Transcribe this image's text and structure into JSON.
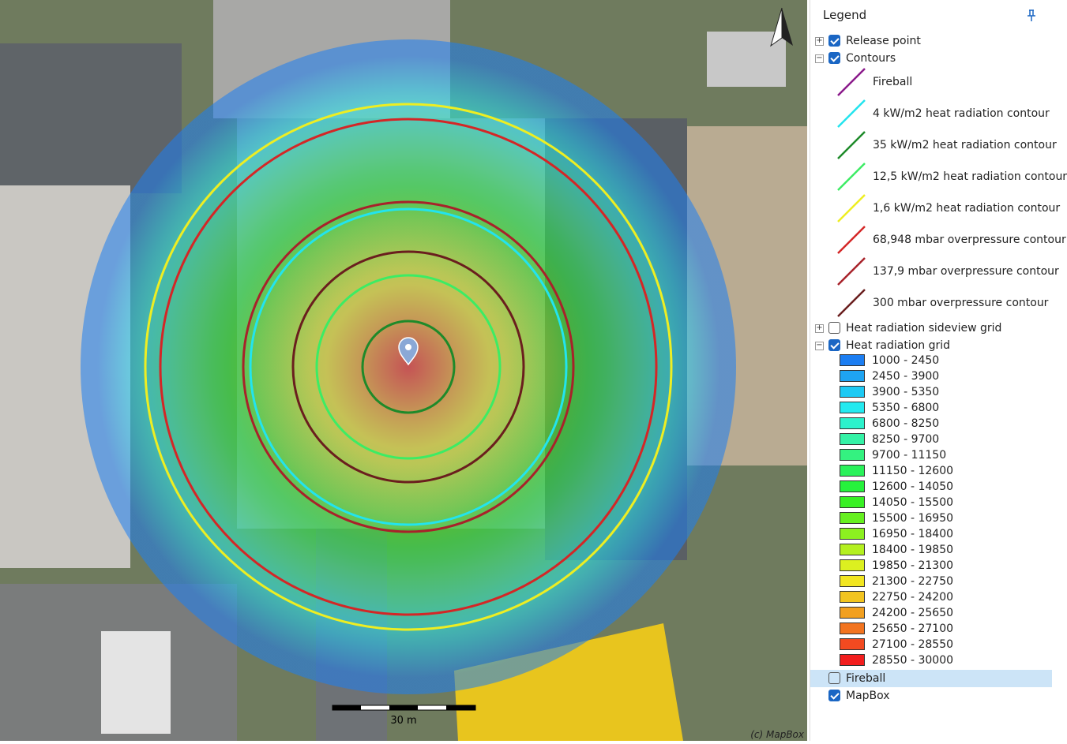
{
  "map": {
    "scale_label": "30 m",
    "attribution": "(c) MapBox"
  },
  "legend": {
    "title": "Legend",
    "items": [
      {
        "label": "Release point",
        "checked": true,
        "expanded": false
      },
      {
        "label": "Contours",
        "checked": true,
        "expanded": true,
        "children": [
          {
            "label": "Fireball",
            "color": "#8a1a8a"
          },
          {
            "label": "4 kW/m2 heat radiation contour",
            "color": "#22e4ee"
          },
          {
            "label": "35 kW/m2 heat radiation contour",
            "color": "#1e8a2a"
          },
          {
            "label": "12,5 kW/m2 heat radiation contour",
            "color": "#3cec64"
          },
          {
            "label": "1,6 kW/m2 heat radiation contour",
            "color": "#eeee22"
          },
          {
            "label": "68,948 mbar overpressure contour",
            "color": "#d42626"
          },
          {
            "label": "137,9 mbar overpressure contour",
            "color": "#a8222a"
          },
          {
            "label": "300 mbar overpressure contour",
            "color": "#6a1e1e"
          }
        ]
      },
      {
        "label": "Heat radiation sideview grid",
        "checked": false,
        "expanded": false
      },
      {
        "label": "Heat radiation grid",
        "checked": true,
        "expanded": true,
        "children": [
          {
            "label": "1000 - 2450",
            "color": "#1c7ef2"
          },
          {
            "label": "2450 - 3900",
            "color": "#1ea4f2"
          },
          {
            "label": "3900 - 5350",
            "color": "#1ecaf4"
          },
          {
            "label": "5350 - 6800",
            "color": "#24eaf0"
          },
          {
            "label": "6800 - 8250",
            "color": "#2cf2cc"
          },
          {
            "label": "8250 - 9700",
            "color": "#34f2a6"
          },
          {
            "label": "9700 - 11150",
            "color": "#34f280"
          },
          {
            "label": "11150 - 12600",
            "color": "#2af25a"
          },
          {
            "label": "12600 - 14050",
            "color": "#26f23c"
          },
          {
            "label": "14050 - 15500",
            "color": "#38f024"
          },
          {
            "label": "15500 - 16950",
            "color": "#66f020"
          },
          {
            "label": "16950 - 18400",
            "color": "#8cf020"
          },
          {
            "label": "18400 - 19850",
            "color": "#b4f020"
          },
          {
            "label": "19850 - 21300",
            "color": "#dcf020"
          },
          {
            "label": "21300 - 22750",
            "color": "#f2e620"
          },
          {
            "label": "22750 - 24200",
            "color": "#f2c420"
          },
          {
            "label": "24200 - 25650",
            "color": "#f2a020"
          },
          {
            "label": "25650 - 27100",
            "color": "#f27420"
          },
          {
            "label": "27100 - 28550",
            "color": "#f24a20"
          },
          {
            "label": "28550 - 30000",
            "color": "#f21e1e"
          }
        ]
      },
      {
        "label": "Fireball",
        "checked": false,
        "selected": true
      },
      {
        "label": "MapBox",
        "checked": true
      }
    ]
  }
}
